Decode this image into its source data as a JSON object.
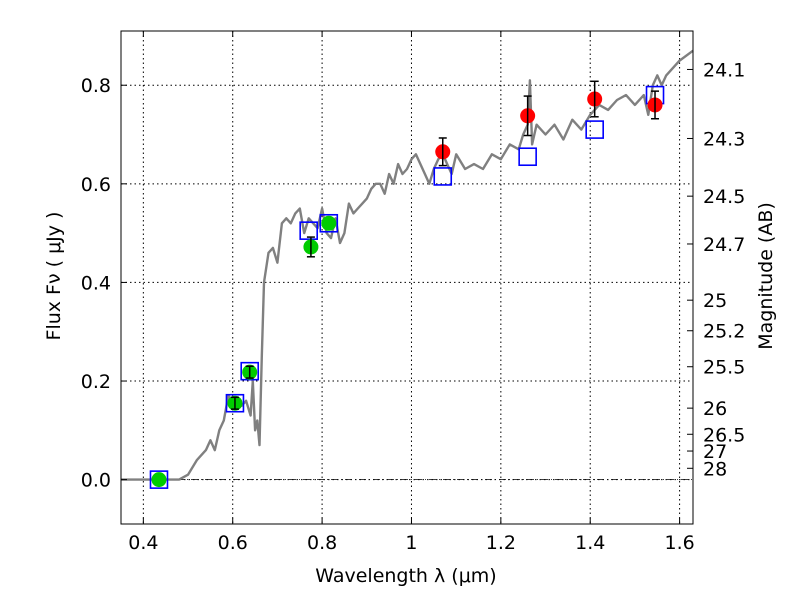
{
  "chart_data": {
    "type": "scatter",
    "title": "",
    "xlabel": "Wavelength  λ (μm)",
    "ylabel": "Flux  Fν ( μJy )",
    "ylabel_right": "Magnitude (AB)",
    "xlim": [
      0.35,
      1.63
    ],
    "ylim": [
      -0.09,
      0.91
    ],
    "grid": true,
    "x_ticks": [
      0.4,
      0.6,
      0.8,
      1.0,
      1.2,
      1.4,
      1.6
    ],
    "x_tick_labels": [
      "0.4",
      "0.6",
      "0.8",
      "1",
      "1.2",
      "1.4",
      "1.6"
    ],
    "y_ticks": [
      0.0,
      0.2,
      0.4,
      0.6,
      0.8
    ],
    "y_tick_labels": [
      "0.0",
      "0.2",
      "0.4",
      "0.6",
      "0.8"
    ],
    "right_ticks": [
      {
        "flux": 0.832,
        "label": "24.1"
      },
      {
        "flux": 0.692,
        "label": "24.3"
      },
      {
        "flux": 0.575,
        "label": "24.5"
      },
      {
        "flux": 0.478,
        "label": "24.7"
      },
      {
        "flux": 0.364,
        "label": "25"
      },
      {
        "flux": 0.302,
        "label": "25.2"
      },
      {
        "flux": 0.229,
        "label": "25.5"
      },
      {
        "flux": 0.145,
        "label": "26"
      },
      {
        "flux": 0.092,
        "label": "26.5"
      },
      {
        "flux": 0.058,
        "label": "27"
      },
      {
        "flux": 0.023,
        "label": "28"
      }
    ],
    "series": [
      {
        "color": "#808080",
        "style": "line",
        "x": [
          0.35,
          0.48,
          0.5,
          0.52,
          0.54,
          0.55,
          0.56,
          0.57,
          0.58,
          0.59,
          0.6,
          0.61,
          0.62,
          0.63,
          0.64,
          0.645,
          0.65,
          0.655,
          0.66,
          0.665,
          0.67,
          0.68,
          0.69,
          0.7,
          0.71,
          0.72,
          0.73,
          0.74,
          0.75,
          0.76,
          0.77,
          0.78,
          0.79,
          0.8,
          0.81,
          0.82,
          0.83,
          0.84,
          0.85,
          0.86,
          0.87,
          0.88,
          0.89,
          0.9,
          0.91,
          0.92,
          0.93,
          0.94,
          0.95,
          0.96,
          0.97,
          0.98,
          0.99,
          1.0,
          1.01,
          1.02,
          1.03,
          1.04,
          1.05,
          1.06,
          1.07,
          1.08,
          1.09,
          1.1,
          1.12,
          1.14,
          1.16,
          1.18,
          1.2,
          1.22,
          1.24,
          1.25,
          1.26,
          1.265,
          1.27,
          1.28,
          1.3,
          1.32,
          1.34,
          1.36,
          1.38,
          1.4,
          1.42,
          1.44,
          1.46,
          1.48,
          1.5,
          1.52,
          1.53,
          1.54,
          1.55,
          1.56,
          1.57,
          1.58,
          1.6,
          1.63
        ],
        "values": [
          0.0,
          0.0,
          0.01,
          0.04,
          0.06,
          0.08,
          0.06,
          0.1,
          0.12,
          0.17,
          0.16,
          0.16,
          0.15,
          0.16,
          0.13,
          0.2,
          0.1,
          0.12,
          0.07,
          0.25,
          0.4,
          0.46,
          0.47,
          0.44,
          0.52,
          0.53,
          0.52,
          0.54,
          0.55,
          0.5,
          0.53,
          0.52,
          0.51,
          0.55,
          0.5,
          0.49,
          0.53,
          0.48,
          0.5,
          0.56,
          0.54,
          0.55,
          0.56,
          0.57,
          0.59,
          0.6,
          0.6,
          0.58,
          0.62,
          0.6,
          0.64,
          0.62,
          0.63,
          0.65,
          0.66,
          0.64,
          0.62,
          0.6,
          0.63,
          0.65,
          0.66,
          0.64,
          0.62,
          0.66,
          0.63,
          0.64,
          0.63,
          0.66,
          0.65,
          0.68,
          0.67,
          0.7,
          0.72,
          0.81,
          0.68,
          0.72,
          0.7,
          0.72,
          0.69,
          0.73,
          0.71,
          0.74,
          0.76,
          0.75,
          0.77,
          0.78,
          0.76,
          0.78,
          0.74,
          0.8,
          0.82,
          0.8,
          0.82,
          0.83,
          0.85,
          0.87
        ]
      },
      {
        "color": "#0000ff",
        "style": "open-square",
        "x": [
          0.435,
          0.605,
          0.638,
          0.77,
          0.815,
          1.07,
          1.26,
          1.41,
          1.545
        ],
        "values": [
          0.0,
          0.155,
          0.22,
          0.505,
          0.52,
          0.615,
          0.655,
          0.71,
          0.78
        ]
      },
      {
        "color": "#00cc00",
        "style": "dot",
        "x": [
          0.435,
          0.605,
          0.638,
          0.775,
          0.815
        ],
        "values": [
          0.0,
          0.155,
          0.218,
          0.472,
          0.52
        ],
        "errors": [
          0.0,
          0.012,
          0.012,
          0.02,
          0.0
        ]
      },
      {
        "color": "#ff0000",
        "style": "dot",
        "x": [
          1.07,
          1.26,
          1.41,
          1.545
        ],
        "values": [
          0.665,
          0.738,
          0.772,
          0.76
        ],
        "errors": [
          0.028,
          0.04,
          0.036,
          0.028
        ]
      }
    ]
  }
}
